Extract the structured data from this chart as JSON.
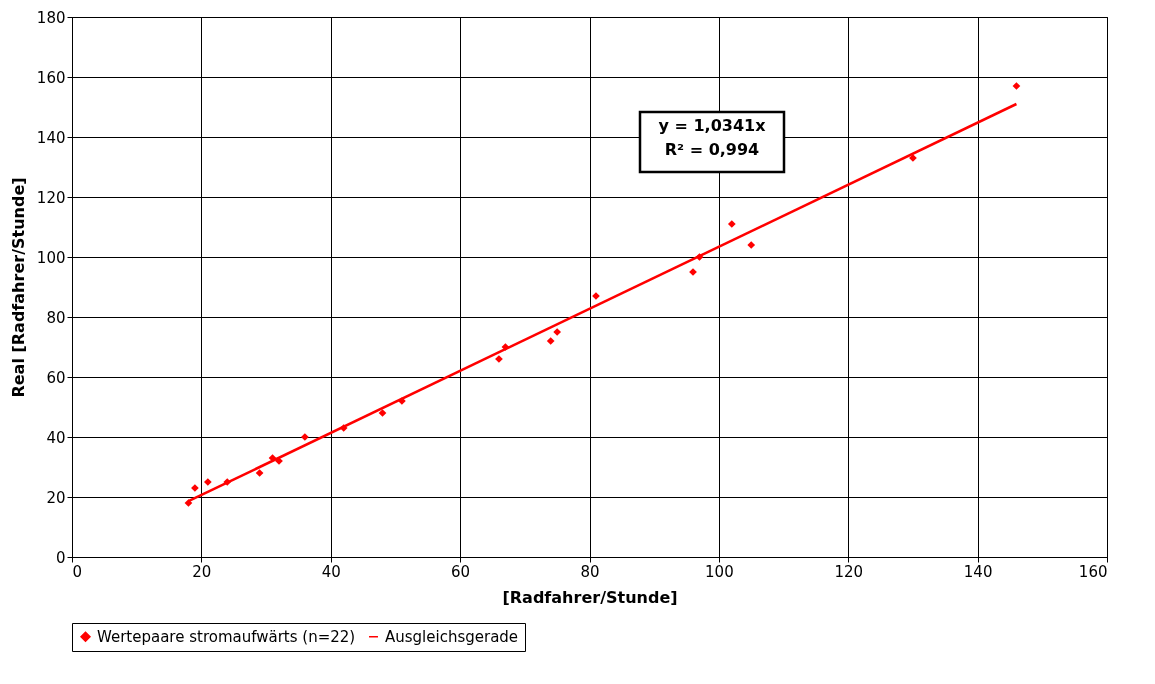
{
  "chart_data": {
    "type": "scatter",
    "xlabel": "[Radfahrer/Stunde]",
    "ylabel": "Real [Radfahrer/Stunde]",
    "xlim": [
      0,
      160
    ],
    "xticks": [
      0,
      20,
      40,
      60,
      80,
      100,
      120,
      140,
      160
    ],
    "ylim": [
      0,
      180
    ],
    "yticks": [
      0,
      20,
      40,
      60,
      80,
      100,
      120,
      140,
      160,
      180
    ],
    "grid": true,
    "legend": "bottom",
    "annotations": [
      "y = 1,0341x",
      "R² = 0,994"
    ],
    "series": [
      {
        "name": "Wertepaare stromaufwärts (n=22)",
        "marker": "diamond",
        "color": "#ff0000",
        "x": [
          18,
          19,
          21,
          24,
          29,
          31,
          32,
          36,
          42,
          48,
          51,
          66,
          67,
          74,
          75,
          81,
          96,
          97,
          102,
          105,
          130,
          146
        ],
        "values": [
          18,
          23,
          25,
          25,
          28,
          33,
          32,
          40,
          43,
          48,
          52,
          66,
          70,
          72,
          75,
          87,
          95,
          100,
          111,
          104,
          133,
          157
        ]
      },
      {
        "name": "Ausgleichsgerade",
        "type": "line",
        "marker": "none",
        "color": "#ff0000",
        "line_style": "solid",
        "x": [
          18,
          146
        ],
        "values": [
          18.6,
          151.0
        ]
      }
    ]
  }
}
